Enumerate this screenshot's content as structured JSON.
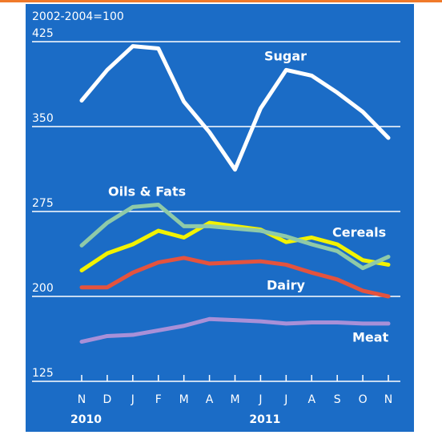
{
  "chart_data": {
    "type": "line",
    "subtitle": "2002-2004=100",
    "categories": [
      "N",
      "D",
      "J",
      "F",
      "M",
      "A",
      "M",
      "J",
      "J",
      "A",
      "S",
      "O",
      "N"
    ],
    "years": [
      "2010",
      "2011"
    ],
    "ylim": [
      125,
      425
    ],
    "yticks": [
      125,
      200,
      275,
      350,
      425
    ],
    "grid": true,
    "series": [
      {
        "name": "Sugar",
        "color": "#ffffff",
        "values": [
          373,
          400,
          421,
          419,
          372,
          345,
          312,
          366,
          400,
          395,
          380,
          363,
          340
        ]
      },
      {
        "name": "Oils & Fats",
        "color": "#8fcaa8",
        "values": [
          245,
          265,
          279,
          281,
          262,
          262,
          260,
          258,
          253,
          246,
          240,
          225,
          235
        ]
      },
      {
        "name": "Cereals",
        "color": "#f2f200",
        "values": [
          223,
          238,
          246,
          258,
          252,
          265,
          262,
          259,
          248,
          252,
          246,
          232,
          228
        ]
      },
      {
        "name": "Dairy",
        "color": "#e4533e",
        "values": [
          208,
          208,
          221,
          230,
          234,
          229,
          230,
          231,
          228,
          221,
          215,
          205,
          200
        ]
      },
      {
        "name": "Meat",
        "color": "#a890d8",
        "values": [
          160,
          165,
          166,
          170,
          174,
          180,
          179,
          178,
          176,
          177,
          177,
          176,
          176
        ]
      }
    ]
  }
}
